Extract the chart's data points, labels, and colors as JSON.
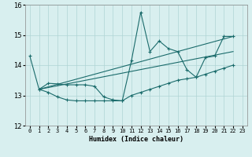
{
  "xlabel": "Humidex (Indice chaleur)",
  "bg_color": "#d8efef",
  "grid_color": "#afd4d4",
  "line_color": "#1a6b6b",
  "xlim": [
    -0.5,
    23.5
  ],
  "ylim": [
    12,
    16
  ],
  "yticks": [
    12,
    13,
    14,
    15,
    16
  ],
  "xticks": [
    0,
    1,
    2,
    3,
    4,
    5,
    6,
    7,
    8,
    9,
    10,
    11,
    12,
    13,
    14,
    15,
    16,
    17,
    18,
    19,
    20,
    21,
    22,
    23
  ],
  "line1_x": [
    0,
    1,
    2,
    3,
    4,
    5,
    6,
    7,
    8,
    9,
    10,
    11,
    12,
    13,
    14,
    15,
    16,
    17,
    18,
    19,
    20,
    21,
    22
  ],
  "line1_y": [
    14.3,
    13.2,
    13.4,
    13.38,
    13.35,
    13.35,
    13.35,
    13.3,
    12.95,
    12.85,
    12.82,
    14.15,
    15.75,
    14.45,
    14.8,
    14.55,
    14.45,
    13.85,
    13.6,
    14.25,
    14.3,
    14.95,
    14.95
  ],
  "line2_x": [
    1,
    2,
    3,
    4,
    5,
    6,
    7,
    8,
    9,
    10,
    11,
    12,
    13,
    14,
    15,
    16,
    17,
    18,
    19,
    20,
    21,
    22
  ],
  "line2_y": [
    13.2,
    13.1,
    12.95,
    12.85,
    12.82,
    12.82,
    12.82,
    12.82,
    12.82,
    12.82,
    13.0,
    13.1,
    13.2,
    13.3,
    13.4,
    13.5,
    13.55,
    13.6,
    13.7,
    13.8,
    13.9,
    14.0
  ],
  "trend1_x": [
    1,
    22
  ],
  "trend1_y": [
    13.2,
    14.95
  ],
  "trend2_x": [
    1,
    22
  ],
  "trend2_y": [
    13.2,
    14.45
  ]
}
